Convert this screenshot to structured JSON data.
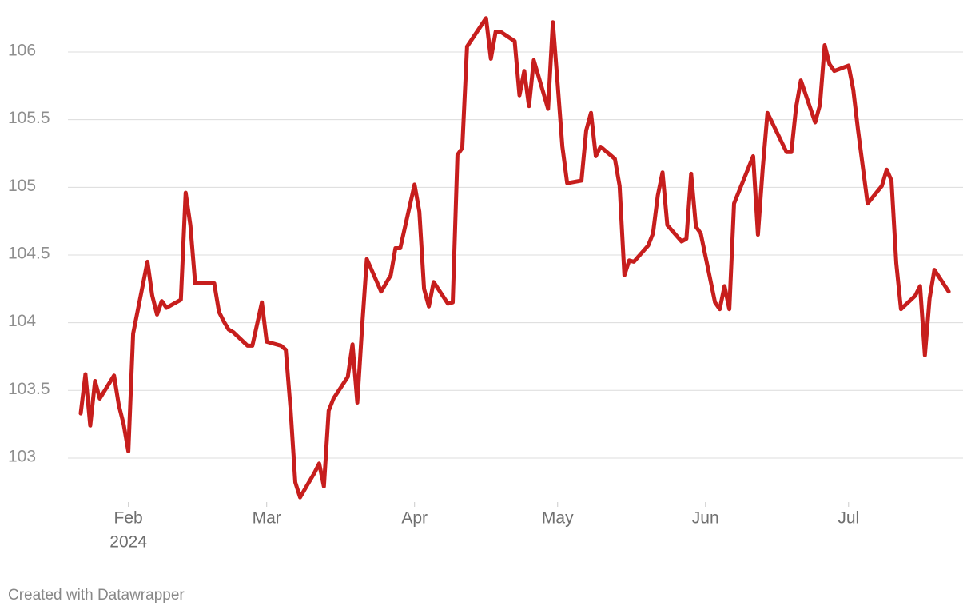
{
  "chart_data": {
    "type": "line",
    "x": [
      22,
      23,
      24,
      25,
      26,
      29,
      30,
      31,
      32,
      33,
      36,
      37,
      38,
      39,
      40,
      43,
      44,
      45,
      46,
      50,
      51,
      52,
      53,
      54,
      57,
      58,
      60,
      61,
      64,
      65,
      66,
      67,
      68,
      71,
      72,
      73,
      74,
      75,
      78,
      79,
      80,
      81,
      82,
      85,
      87,
      88,
      89,
      92,
      93,
      94,
      95,
      96,
      99,
      100,
      101,
      102,
      103,
      107,
      108,
      109,
      110,
      113,
      114,
      115,
      116,
      117,
      120,
      121,
      122,
      123,
      124,
      127,
      128,
      129,
      130,
      131,
      134,
      135,
      136,
      137,
      138,
      141,
      142,
      143,
      144,
      145,
      148,
      149,
      150,
      151,
      152,
      155,
      156,
      157,
      158,
      159,
      163,
      164,
      165,
      166,
      170,
      171,
      172,
      173,
      176,
      177,
      178,
      179,
      180,
      183,
      184,
      185,
      187,
      190,
      191,
      192,
      193,
      194,
      197,
      198,
      199,
      200,
      201,
      204
    ],
    "series": [
      {
        "color": "#c71e1d",
        "values": [
          103.33,
          103.62,
          103.24,
          103.57,
          103.44,
          103.61,
          103.39,
          103.25,
          103.05,
          103.92,
          104.45,
          104.2,
          104.06,
          104.16,
          104.11,
          104.17,
          104.96,
          104.72,
          104.29,
          104.29,
          104.08,
          104.01,
          103.95,
          103.93,
          103.83,
          103.83,
          104.15,
          103.86,
          103.83,
          103.8,
          103.37,
          102.82,
          102.71,
          102.89,
          102.96,
          102.79,
          103.35,
          103.44,
          103.6,
          103.84,
          103.41,
          103.97,
          104.47,
          104.23,
          104.35,
          104.55,
          104.55,
          105.02,
          104.82,
          104.25,
          104.12,
          104.3,
          104.14,
          104.15,
          105.24,
          105.29,
          106.04,
          106.25,
          105.95,
          106.15,
          106.15,
          106.08,
          105.68,
          105.86,
          105.6,
          105.94,
          105.58,
          106.22,
          105.77,
          105.3,
          105.03,
          105.05,
          105.42,
          105.55,
          105.23,
          105.3,
          105.21,
          105.01,
          104.35,
          104.46,
          104.45,
          104.57,
          104.66,
          104.94,
          105.11,
          104.72,
          104.6,
          104.62,
          105.1,
          104.71,
          104.66,
          104.15,
          104.1,
          104.27,
          104.1,
          104.88,
          105.23,
          104.65,
          105.14,
          105.55,
          105.26,
          105.26,
          105.59,
          105.79,
          105.48,
          105.61,
          106.05,
          105.91,
          105.86,
          105.9,
          105.72,
          105.42,
          104.88,
          105.01,
          105.13,
          105.05,
          104.44,
          104.1,
          104.2,
          104.27,
          103.76,
          104.18,
          104.39,
          104.23
        ]
      }
    ],
    "xlim": [
      21,
      207
    ],
    "xticks": [
      {
        "value": 32,
        "label": "Feb"
      },
      {
        "value": 61,
        "label": "Mar"
      },
      {
        "value": 92,
        "label": "Apr"
      },
      {
        "value": 122,
        "label": "May"
      },
      {
        "value": 153,
        "label": "Jun"
      },
      {
        "value": 183,
        "label": "Jul"
      }
    ],
    "xtick_year": "2024",
    "ylim": [
      102.6,
      106.3
    ],
    "yticks": [
      103,
      103.5,
      104,
      104.5,
      105,
      105.5,
      106
    ],
    "grid": true,
    "footer": "Created with Datawrapper"
  }
}
